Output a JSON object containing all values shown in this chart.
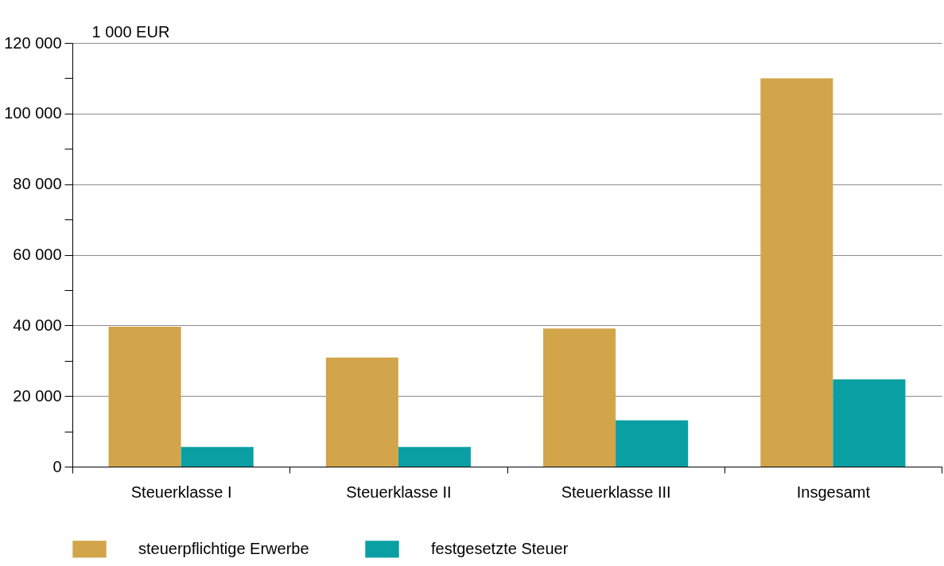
{
  "chart_data": {
    "type": "bar",
    "ylabel": "1 000 EUR",
    "categories": [
      "Steuerklasse I",
      "Steuerklasse II",
      "Steuerklasse III",
      "Insgesamt"
    ],
    "series": [
      {
        "name": "steuerpflichtige Erwerbe",
        "color": "#d2a54b",
        "values": [
          39600,
          30900,
          39100,
          110000
        ]
      },
      {
        "name": "festgesetzte Steuer",
        "color": "#0a9fa3",
        "values": [
          5600,
          5600,
          13100,
          24700
        ]
      }
    ],
    "ylim": [
      0,
      120000
    ],
    "yticks": [
      {
        "value": 0,
        "label": "0"
      },
      {
        "value": 10000,
        "label": null
      },
      {
        "value": 20000,
        "label": "20 000"
      },
      {
        "value": 30000,
        "label": null
      },
      {
        "value": 40000,
        "label": "40 000"
      },
      {
        "value": 50000,
        "label": null
      },
      {
        "value": 60000,
        "label": "60 000"
      },
      {
        "value": 70000,
        "label": null
      },
      {
        "value": 80000,
        "label": "80 000"
      },
      {
        "value": 90000,
        "label": null
      },
      {
        "value": 100000,
        "label": "100 000"
      },
      {
        "value": 110000,
        "label": null
      },
      {
        "value": 120000,
        "label": "120 000"
      }
    ],
    "grid": "y",
    "legend": "bottom"
  }
}
